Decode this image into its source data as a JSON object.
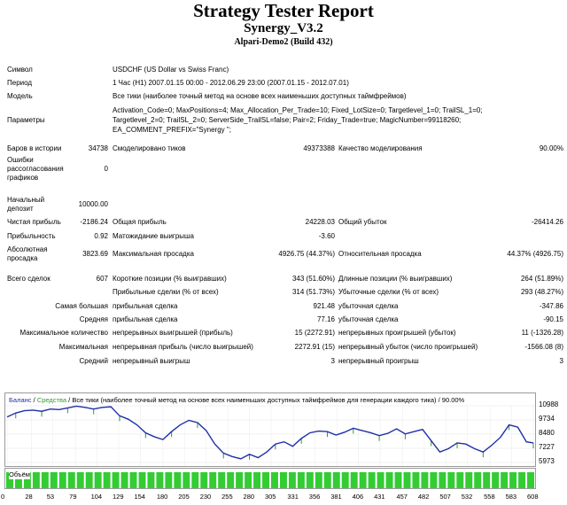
{
  "header": {
    "title": "Strategy Tester Report",
    "expert": "Synergy_V3.2",
    "server": "Alpari-Demo2 (Build 432)"
  },
  "info": {
    "symbol_label": "Символ",
    "symbol_value": "USDCHF (US Dollar vs Swiss Franc)",
    "period_label": "Период",
    "period_value": "1 Час (H1) 2007.01.15 00:00 - 2012.06.29 23:00 (2007.01.15 - 2012.07.01)",
    "model_label": "Модель",
    "model_value": "Все тики (наиболее точный метод на основе всех наименьших доступных таймфреймов)",
    "params_label": "Параметры",
    "params_line1": "Activation_Code=0; MaxPositions=4; Max_Allocation_Per_Trade=10; Fixed_LotSize=0; Targetlevel_1=0; TrailSL_1=0;",
    "params_line2": "Targetlevel_2=0; TrailSL_2=0; ServerSide_TrailSL=false; Pair=2; Friday_Trade=true; MagicNumber=99118260;",
    "params_line3": "EA_COMMENT_PREFIX=\"Synergy \";"
  },
  "stats": {
    "bars_label": "Баров в истории",
    "bars_value": "34738",
    "ticks_label": "Смоделировано тиков",
    "ticks_value": "49373388",
    "quality_label": "Качество моделирования",
    "quality_value": "90.00%",
    "errors_label_1": "Ошибки",
    "errors_label_2": "рассогласования",
    "errors_label_3": "графиков",
    "errors_value": "0",
    "deposit_label_1": "Начальный",
    "deposit_label_2": "депозит",
    "deposit_value": "10000.00",
    "net_label": "Чистая прибыль",
    "net_value": "-2186.24",
    "gross_profit_label": "Общая прибыль",
    "gross_profit_value": "24228.03",
    "gross_loss_label": "Общий убыток",
    "gross_loss_value": "-26414.26",
    "pf_label": "Прибыльность",
    "pf_value": "0.92",
    "expected_label": "Матожидание выигрыша",
    "expected_value": "-3.60",
    "abs_dd_label_1": "Абсолютная",
    "abs_dd_label_2": "просадка",
    "abs_dd_value": "3823.69",
    "max_dd_label": "Максимальная просадка",
    "max_dd_value": "4926.75 (44.37%)",
    "rel_dd_label": "Относительная просадка",
    "rel_dd_value": "44.37% (4926.75)",
    "trades_label": "Всего сделок",
    "trades_value": "607",
    "short_label": "Короткие позиции (% выигравших)",
    "short_value": "343 (51.60%)",
    "long_label": "Длинные позиции (% выигравших)",
    "long_value": "264 (51.89%)",
    "profit_trades_label": "Прибыльные сделки (% от всех)",
    "profit_trades_value": "314 (51.73%)",
    "loss_trades_label": "Убыточные сделки (% от всех)",
    "loss_trades_value": "293 (48.27%)",
    "largest_label": "Самая большая",
    "largest_profit_label": "прибыльная сделка",
    "largest_profit_value": "921.48",
    "largest_loss_label": "убыточная сделка",
    "largest_loss_value": "-347.86",
    "average_label": "Средняя",
    "avg_profit_label": "прибыльная сделка",
    "avg_profit_value": "77.16",
    "avg_loss_label": "убыточная сделка",
    "avg_loss_value": "-90.15",
    "max_count_label": "Максимальное количество",
    "cons_wins_label": "непрерывных выигрышей (прибыль)",
    "cons_wins_value": "15 (2272.91)",
    "cons_losses_label": "непрерывных проигрышей (убыток)",
    "cons_losses_value": "11 (-1326.28)",
    "max_label": "Максимальная",
    "cons_profit_label": "непрерывная прибыль (число выигрышей)",
    "cons_profit_value": "2272.91 (15)",
    "cons_loss_label": "непрерывный убыток (число проигрышей)",
    "cons_loss_value": "-1566.08 (8)",
    "avg2_label": "Средний",
    "avg_wins_label": "непрерывный выигрыш",
    "avg_wins_value": "3",
    "avg_losses_label": "непрерывный проигрыш",
    "avg_losses_value": "3"
  },
  "chart_legend": {
    "balance": "Баланс",
    "equity": "Средства",
    "rest": "Все тики (наиболее точный метод на основе всех наименьших доступных таймфреймов для генерации каждого тика) / 90.00%",
    "volume": "Объём"
  },
  "colors": {
    "balance": "#1f2fa8",
    "equity": "#2e9c2e",
    "volume": "#33cc33",
    "frame": "#9a9a9a"
  },
  "chart_data": {
    "type": "line",
    "y_ticks": [
      "10988",
      "9734",
      "8480",
      "7227",
      "5973"
    ],
    "ylim": [
      5973,
      10988
    ],
    "x_ticks": [
      "0",
      "28",
      "53",
      "79",
      "104",
      "129",
      "154",
      "180",
      "205",
      "230",
      "255",
      "280",
      "305",
      "331",
      "356",
      "381",
      "406",
      "431",
      "457",
      "482",
      "507",
      "532",
      "558",
      "583",
      "608"
    ],
    "xlim": [
      0,
      608
    ],
    "series": [
      {
        "name": "Баланс",
        "x": [
          0,
          10,
          20,
          30,
          40,
          50,
          60,
          70,
          80,
          90,
          100,
          110,
          120,
          130,
          140,
          150,
          160,
          170,
          180,
          190,
          200,
          210,
          220,
          230,
          240,
          250,
          260,
          270,
          280,
          290,
          300,
          310,
          320,
          330,
          340,
          350,
          360,
          370,
          380,
          390,
          400,
          410,
          420,
          430,
          440,
          450,
          460,
          470,
          480,
          490,
          500,
          510,
          520,
          530,
          540,
          550,
          560,
          570,
          580,
          590,
          600,
          608
        ],
        "y": [
          10000,
          10350,
          10550,
          10600,
          10500,
          10700,
          10650,
          10800,
          10950,
          10850,
          10700,
          10850,
          10900,
          10100,
          9800,
          9300,
          8600,
          8250,
          8000,
          8700,
          9300,
          9700,
          9500,
          8800,
          7600,
          6800,
          6500,
          6300,
          6700,
          6400,
          6900,
          7600,
          7800,
          7400,
          8100,
          8600,
          8750,
          8700,
          8400,
          8650,
          9000,
          8800,
          8600,
          8350,
          8550,
          8950,
          8500,
          8700,
          8900,
          7900,
          6900,
          7200,
          7700,
          7600,
          7200,
          6900,
          7500,
          8200,
          9300,
          9100,
          7800,
          7700
        ]
      }
    ],
    "volume_bar_count": 60
  }
}
